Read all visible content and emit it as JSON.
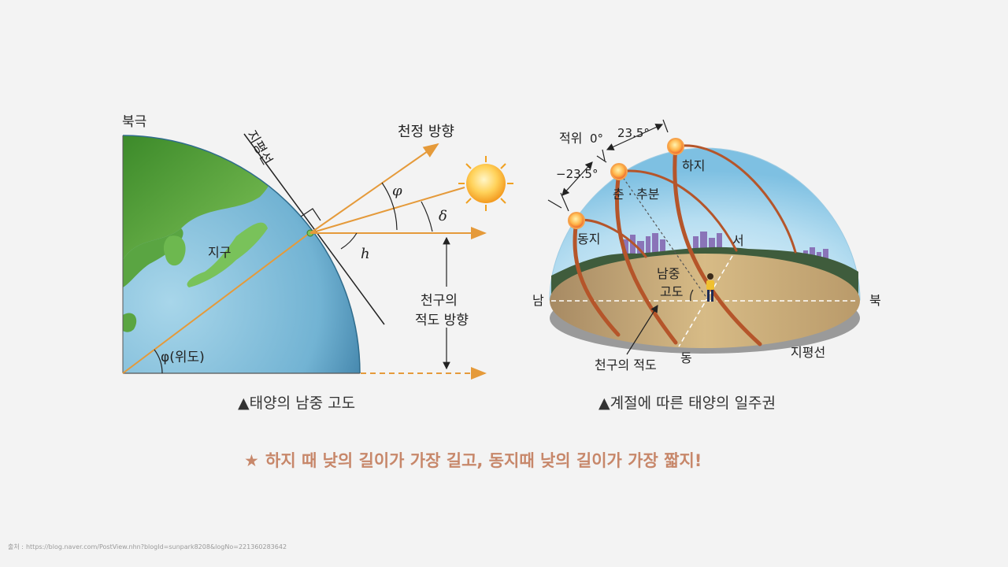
{
  "left_diagram": {
    "north_pole": "북극",
    "horizon_vertical": "지평선",
    "zenith_direction": "천정 방향",
    "earth": "지구",
    "latitude_label": "φ(위도)",
    "celestial_equator_line1": "천구의",
    "celestial_equator_line2": "적도 방향",
    "phi": "φ",
    "delta": "δ",
    "h": "h",
    "caption": "▲태양의 남중 고도"
  },
  "right_diagram": {
    "equator_label": "적위",
    "dec_zero": "0°",
    "dec_plus": "23.5°",
    "dec_minus": "−23.5°",
    "summer_solstice": "하지",
    "equinox": "춘 · 추분",
    "winter_solstice": "동지",
    "west": "서",
    "south": "남",
    "north": "북",
    "east": "동",
    "culmination_line1": "남중",
    "culmination_line2": "고도",
    "horizon": "지평선",
    "celestial_equator": "천구의 적도",
    "caption": "▲계절에 따른 태양의 일주권"
  },
  "highlight": {
    "star": "★",
    "text": "하지 때 낮의 길이가 가장 길고, 동지때 낮의 길이가 가장 짧지!",
    "color": "#c7876a"
  },
  "footer": {
    "prefix": "출처 :",
    "url": "https://blog.naver.com/PostView.nhn?blogId=sunpark8208&logNo=221360283642"
  },
  "colors": {
    "sun_ray": "#e59a3a",
    "path_arc": "#b5552a",
    "dome": "#a9d8ee",
    "ground": "#c9ab78",
    "ocean": "#6fb2d2",
    "land": "#4f9a3a"
  }
}
